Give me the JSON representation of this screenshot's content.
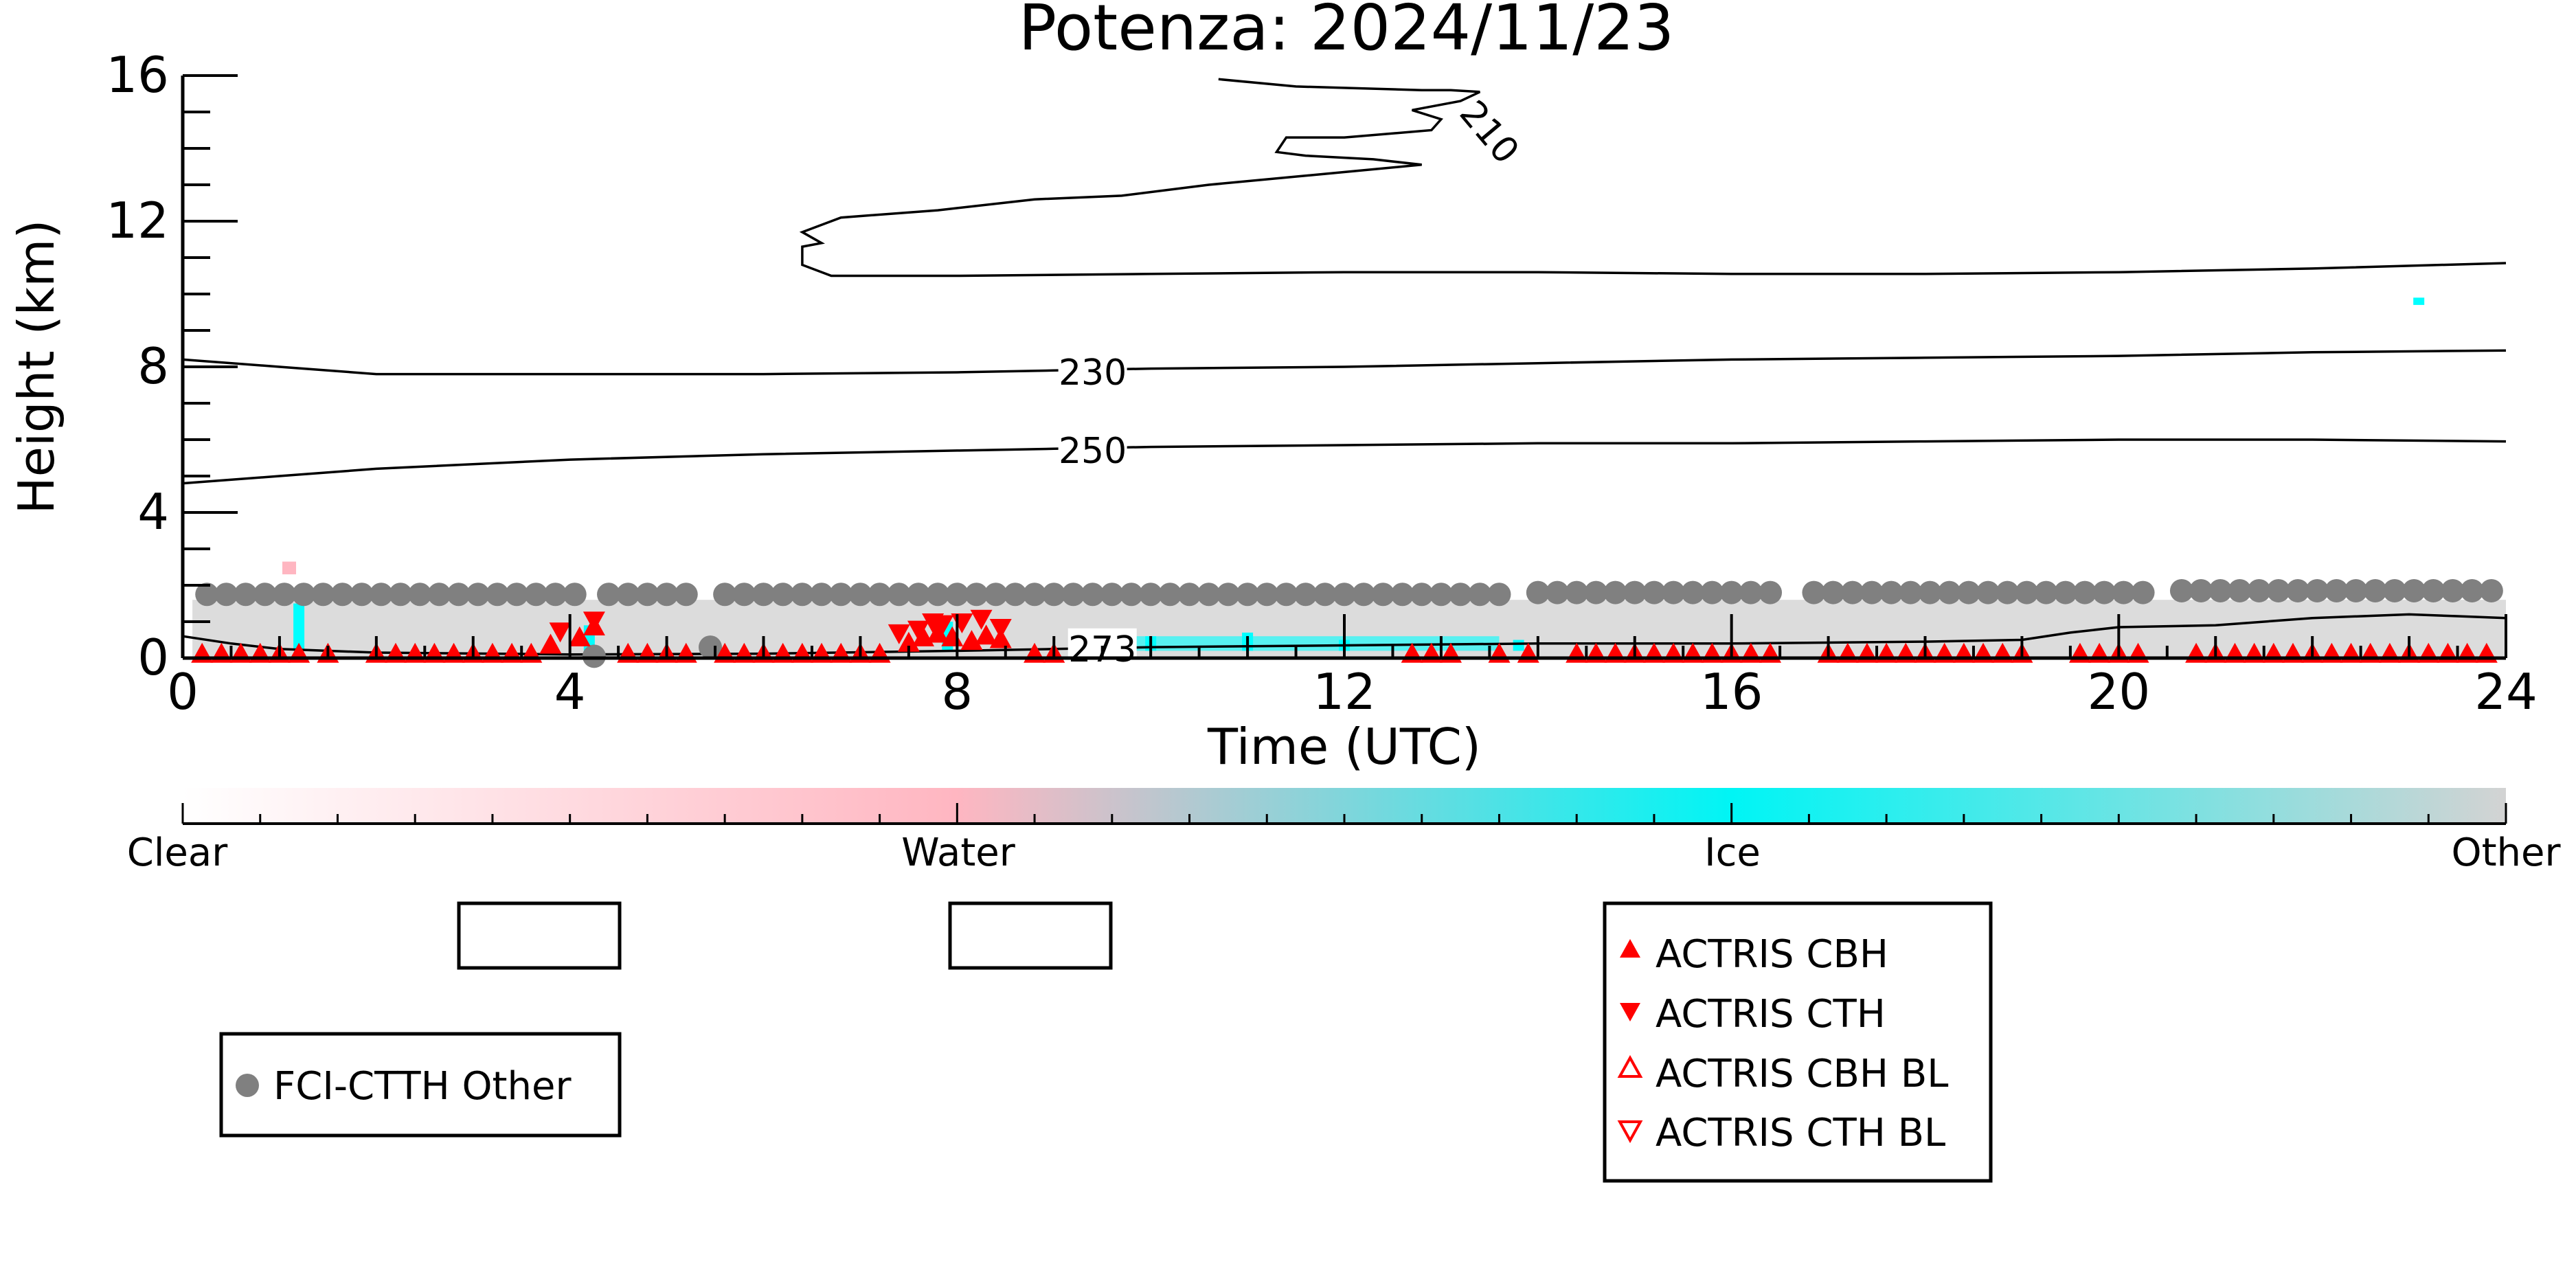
{
  "chart_data": {
    "type": "scatter",
    "title": "Potenza: 2024/11/23",
    "xlabel": "Time (UTC)",
    "ylabel": "Height (km)",
    "xlim": [
      0,
      24
    ],
    "ylim": [
      0,
      16
    ],
    "x_ticks": [
      0,
      4,
      8,
      12,
      16,
      20,
      24
    ],
    "y_ticks": [
      0,
      4,
      8,
      12,
      16
    ],
    "x_tick_labels": [
      "0",
      "4",
      "8",
      "12",
      "16",
      "20",
      "24"
    ],
    "y_tick_labels": [
      "0",
      "4",
      "8",
      "12",
      "16"
    ],
    "colorbar": {
      "labels": [
        "Clear",
        "Water",
        "Ice",
        "Other"
      ],
      "colors": [
        "#ffffff",
        "#ffb6c1",
        "#00ffff",
        "#d3d3d3"
      ]
    },
    "isotherms": [
      {
        "label": "210",
        "points": [
          [
            10.7,
            15.9
          ],
          [
            11.5,
            15.7
          ],
          [
            12.8,
            15.6
          ],
          [
            13.1,
            15.6
          ],
          [
            13.4,
            15.55
          ],
          [
            13.2,
            15.3
          ],
          [
            12.7,
            15.05
          ],
          [
            13.0,
            14.8
          ],
          [
            12.9,
            14.5
          ],
          [
            12.0,
            14.3
          ],
          [
            11.4,
            14.3
          ],
          [
            11.3,
            13.9
          ],
          [
            11.6,
            13.8
          ],
          [
            12.3,
            13.7
          ],
          [
            12.8,
            13.55
          ],
          [
            11.8,
            13.3
          ],
          [
            10.6,
            13.0
          ],
          [
            9.7,
            12.7
          ],
          [
            8.8,
            12.6
          ],
          [
            7.8,
            12.3
          ],
          [
            6.8,
            12.1
          ],
          [
            6.4,
            11.7
          ],
          [
            6.6,
            11.4
          ],
          [
            6.4,
            11.3
          ],
          [
            6.4,
            10.8
          ],
          [
            6.7,
            10.5
          ],
          [
            8.0,
            10.5
          ],
          [
            10.0,
            10.55
          ],
          [
            12.0,
            10.6
          ],
          [
            14.0,
            10.6
          ],
          [
            16.0,
            10.55
          ],
          [
            18.0,
            10.55
          ],
          [
            20.0,
            10.6
          ],
          [
            22.0,
            10.7
          ],
          [
            24.0,
            10.85
          ]
        ]
      },
      {
        "label": "230",
        "points": [
          [
            0,
            8.2
          ],
          [
            1,
            8.0
          ],
          [
            2,
            7.8
          ],
          [
            4,
            7.8
          ],
          [
            6,
            7.8
          ],
          [
            8,
            7.85
          ],
          [
            9,
            7.9
          ],
          [
            10,
            7.95
          ],
          [
            12,
            8.0
          ],
          [
            14,
            8.1
          ],
          [
            16,
            8.2
          ],
          [
            18,
            8.25
          ],
          [
            20,
            8.3
          ],
          [
            22,
            8.4
          ],
          [
            24,
            8.45
          ]
        ]
      },
      {
        "label": "250",
        "points": [
          [
            0,
            4.8
          ],
          [
            1,
            5.0
          ],
          [
            2,
            5.2
          ],
          [
            4,
            5.45
          ],
          [
            6,
            5.6
          ],
          [
            8,
            5.7
          ],
          [
            9,
            5.75
          ],
          [
            10,
            5.8
          ],
          [
            12,
            5.85
          ],
          [
            14,
            5.9
          ],
          [
            16,
            5.9
          ],
          [
            18,
            5.95
          ],
          [
            20,
            6.0
          ],
          [
            22,
            6.0
          ],
          [
            24,
            5.95
          ]
        ]
      },
      {
        "label": "273",
        "points": [
          [
            0,
            0.6
          ],
          [
            0.5,
            0.4
          ],
          [
            1,
            0.25
          ],
          [
            2,
            0.15
          ],
          [
            4,
            0.1
          ],
          [
            6,
            0.12
          ],
          [
            8,
            0.2
          ],
          [
            9,
            0.25
          ],
          [
            10,
            0.3
          ],
          [
            12,
            0.35
          ],
          [
            14,
            0.4
          ],
          [
            16,
            0.4
          ],
          [
            18,
            0.45
          ],
          [
            19,
            0.5
          ],
          [
            19.5,
            0.7
          ],
          [
            20,
            0.85
          ],
          [
            21,
            0.9
          ],
          [
            22,
            1.1
          ],
          [
            23,
            1.2
          ],
          [
            23.5,
            1.15
          ],
          [
            24,
            1.1
          ]
        ]
      }
    ],
    "series": [
      {
        "name": "FCI-CTTH Other",
        "color": "#808080",
        "marker": "circle",
        "points": [
          [
            0.25,
            1.75
          ],
          [
            0.45,
            1.75
          ],
          [
            0.65,
            1.75
          ],
          [
            0.85,
            1.75
          ],
          [
            1.05,
            1.75
          ],
          [
            1.25,
            1.75
          ],
          [
            1.45,
            1.75
          ],
          [
            1.65,
            1.75
          ],
          [
            1.85,
            1.75
          ],
          [
            2.05,
            1.75
          ],
          [
            2.25,
            1.75
          ],
          [
            2.45,
            1.75
          ],
          [
            2.65,
            1.75
          ],
          [
            2.85,
            1.75
          ],
          [
            3.05,
            1.75
          ],
          [
            3.25,
            1.75
          ],
          [
            3.45,
            1.75
          ],
          [
            3.65,
            1.75
          ],
          [
            3.85,
            1.75
          ],
          [
            4.05,
            1.75
          ],
          [
            4.4,
            1.75
          ],
          [
            4.6,
            1.75
          ],
          [
            4.8,
            1.75
          ],
          [
            5.0,
            1.75
          ],
          [
            5.2,
            1.75
          ],
          [
            4.25,
            0.05
          ],
          [
            5.45,
            0.3
          ],
          [
            5.6,
            1.75
          ],
          [
            5.8,
            1.75
          ],
          [
            6.0,
            1.75
          ],
          [
            6.2,
            1.75
          ],
          [
            6.4,
            1.75
          ],
          [
            6.6,
            1.75
          ],
          [
            6.8,
            1.75
          ],
          [
            7.0,
            1.75
          ],
          [
            7.2,
            1.75
          ],
          [
            7.4,
            1.75
          ],
          [
            7.6,
            1.75
          ],
          [
            7.8,
            1.75
          ],
          [
            8.0,
            1.75
          ],
          [
            8.2,
            1.75
          ],
          [
            8.4,
            1.75
          ],
          [
            8.6,
            1.75
          ],
          [
            8.8,
            1.75
          ],
          [
            9.0,
            1.75
          ],
          [
            9.2,
            1.75
          ],
          [
            9.4,
            1.75
          ],
          [
            9.6,
            1.75
          ],
          [
            9.8,
            1.75
          ],
          [
            10.0,
            1.75
          ],
          [
            10.2,
            1.75
          ],
          [
            10.4,
            1.75
          ],
          [
            10.6,
            1.75
          ],
          [
            10.8,
            1.75
          ],
          [
            11.0,
            1.75
          ],
          [
            11.2,
            1.75
          ],
          [
            11.4,
            1.75
          ],
          [
            11.6,
            1.75
          ],
          [
            11.8,
            1.75
          ],
          [
            12.0,
            1.75
          ],
          [
            12.2,
            1.75
          ],
          [
            12.4,
            1.75
          ],
          [
            12.6,
            1.75
          ],
          [
            12.8,
            1.75
          ],
          [
            13.0,
            1.75
          ],
          [
            13.2,
            1.75
          ],
          [
            13.4,
            1.75
          ],
          [
            13.6,
            1.75
          ],
          [
            14.0,
            1.8
          ],
          [
            14.2,
            1.8
          ],
          [
            14.4,
            1.8
          ],
          [
            14.6,
            1.8
          ],
          [
            14.8,
            1.8
          ],
          [
            15.0,
            1.8
          ],
          [
            15.2,
            1.8
          ],
          [
            15.4,
            1.8
          ],
          [
            15.6,
            1.8
          ],
          [
            15.8,
            1.8
          ],
          [
            16.0,
            1.8
          ],
          [
            16.2,
            1.8
          ],
          [
            16.4,
            1.8
          ],
          [
            16.85,
            1.8
          ],
          [
            17.05,
            1.8
          ],
          [
            17.25,
            1.8
          ],
          [
            17.45,
            1.8
          ],
          [
            17.65,
            1.8
          ],
          [
            17.85,
            1.8
          ],
          [
            18.05,
            1.8
          ],
          [
            18.25,
            1.8
          ],
          [
            18.45,
            1.8
          ],
          [
            18.65,
            1.8
          ],
          [
            18.85,
            1.8
          ],
          [
            19.05,
            1.8
          ],
          [
            19.25,
            1.8
          ],
          [
            19.45,
            1.8
          ],
          [
            19.65,
            1.8
          ],
          [
            19.85,
            1.8
          ],
          [
            20.05,
            1.8
          ],
          [
            20.25,
            1.8
          ],
          [
            20.65,
            1.85
          ],
          [
            20.85,
            1.85
          ],
          [
            21.05,
            1.85
          ],
          [
            21.25,
            1.85
          ],
          [
            21.45,
            1.85
          ],
          [
            21.65,
            1.85
          ],
          [
            21.85,
            1.85
          ],
          [
            22.05,
            1.85
          ],
          [
            22.25,
            1.85
          ],
          [
            22.45,
            1.85
          ],
          [
            22.65,
            1.85
          ],
          [
            22.85,
            1.85
          ],
          [
            23.05,
            1.85
          ],
          [
            23.25,
            1.85
          ],
          [
            23.45,
            1.85
          ],
          [
            23.65,
            1.85
          ],
          [
            23.85,
            1.85
          ]
        ]
      },
      {
        "name": "ACTRIS CBH",
        "color": "#ff0000",
        "marker": "triangle-up",
        "points": [
          [
            0.2,
            0.1
          ],
          [
            0.4,
            0.1
          ],
          [
            0.6,
            0.1
          ],
          [
            0.8,
            0.1
          ],
          [
            1.0,
            0.1
          ],
          [
            1.2,
            0.1
          ],
          [
            1.5,
            0.1
          ],
          [
            2.0,
            0.1
          ],
          [
            2.2,
            0.1
          ],
          [
            2.4,
            0.1
          ],
          [
            2.6,
            0.1
          ],
          [
            2.8,
            0.1
          ],
          [
            3.0,
            0.1
          ],
          [
            3.2,
            0.1
          ],
          [
            3.4,
            0.1
          ],
          [
            3.6,
            0.1
          ],
          [
            3.8,
            0.35
          ],
          [
            4.1,
            0.55
          ],
          [
            4.25,
            0.85
          ],
          [
            4.6,
            0.1
          ],
          [
            4.8,
            0.1
          ],
          [
            5.0,
            0.1
          ],
          [
            5.2,
            0.1
          ],
          [
            5.6,
            0.1
          ],
          [
            5.8,
            0.1
          ],
          [
            6.0,
            0.1
          ],
          [
            6.2,
            0.1
          ],
          [
            6.4,
            0.1
          ],
          [
            6.6,
            0.1
          ],
          [
            6.8,
            0.1
          ],
          [
            7.0,
            0.1
          ],
          [
            7.2,
            0.1
          ],
          [
            7.5,
            0.4
          ],
          [
            7.65,
            0.55
          ],
          [
            7.8,
            0.65
          ],
          [
            7.95,
            0.55
          ],
          [
            8.15,
            0.45
          ],
          [
            8.3,
            0.6
          ],
          [
            8.45,
            0.5
          ],
          [
            8.8,
            0.1
          ],
          [
            9.0,
            0.1
          ],
          [
            12.7,
            0.1
          ],
          [
            12.9,
            0.1
          ],
          [
            13.1,
            0.1
          ],
          [
            13.6,
            0.1
          ],
          [
            13.9,
            0.1
          ],
          [
            14.4,
            0.1
          ],
          [
            14.6,
            0.1
          ],
          [
            14.8,
            0.1
          ],
          [
            15.0,
            0.1
          ],
          [
            15.2,
            0.1
          ],
          [
            15.4,
            0.1
          ],
          [
            15.6,
            0.1
          ],
          [
            15.8,
            0.1
          ],
          [
            16.0,
            0.1
          ],
          [
            16.2,
            0.1
          ],
          [
            16.4,
            0.1
          ],
          [
            17.0,
            0.1
          ],
          [
            17.2,
            0.1
          ],
          [
            17.4,
            0.1
          ],
          [
            17.6,
            0.1
          ],
          [
            17.8,
            0.1
          ],
          [
            18.0,
            0.1
          ],
          [
            18.2,
            0.1
          ],
          [
            18.4,
            0.1
          ],
          [
            18.6,
            0.1
          ],
          [
            18.8,
            0.1
          ],
          [
            19.0,
            0.1
          ],
          [
            19.6,
            0.1
          ],
          [
            19.8,
            0.1
          ],
          [
            20.0,
            0.1
          ],
          [
            20.2,
            0.1
          ],
          [
            20.8,
            0.1
          ],
          [
            21.0,
            0.1
          ],
          [
            21.2,
            0.1
          ],
          [
            21.4,
            0.1
          ],
          [
            21.6,
            0.1
          ],
          [
            21.8,
            0.1
          ],
          [
            22.0,
            0.1
          ],
          [
            22.2,
            0.1
          ],
          [
            22.4,
            0.1
          ],
          [
            22.6,
            0.1
          ],
          [
            22.8,
            0.1
          ],
          [
            23.0,
            0.1
          ],
          [
            23.2,
            0.1
          ],
          [
            23.4,
            0.1
          ],
          [
            23.6,
            0.1
          ],
          [
            23.8,
            0.1
          ]
        ]
      },
      {
        "name": "ACTRIS CTH",
        "color": "#ff0000",
        "marker": "triangle-down",
        "points": [
          [
            3.9,
            0.75
          ],
          [
            4.25,
            1.05
          ],
          [
            7.4,
            0.7
          ],
          [
            7.6,
            0.8
          ],
          [
            7.75,
            1.0
          ],
          [
            7.85,
            0.95
          ],
          [
            8.05,
            1.0
          ],
          [
            8.25,
            1.1
          ],
          [
            8.45,
            0.85
          ]
        ]
      },
      {
        "name": "ACTRIS CBH BL",
        "color": "#ff0000",
        "marker": "triangle-up-open",
        "points": []
      },
      {
        "name": "ACTRIS CTH BL",
        "color": "#ff0000",
        "marker": "triangle-down-open",
        "points": []
      }
    ],
    "legends": {
      "fci": [
        "FCI-CTTH Other"
      ],
      "actris": [
        "ACTRIS CBH",
        "ACTRIS CTH",
        "ACTRIS CBH BL",
        "ACTRIS CTH BL"
      ]
    }
  }
}
